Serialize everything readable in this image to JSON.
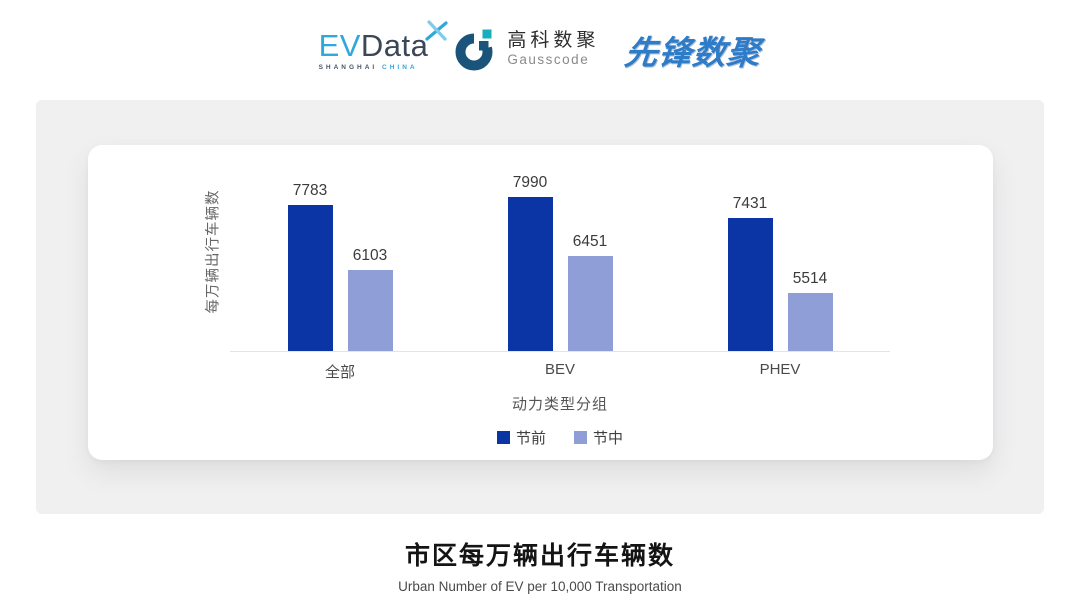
{
  "header": {
    "evdata": {
      "ev": "EV",
      "data": "Data",
      "sub_left": "SHANGHAI",
      "sub_right": "CHINA"
    },
    "gausscode": {
      "cn": "高科数聚",
      "en": "Gausscode"
    },
    "xianfeng": "先锋数聚"
  },
  "chart_data": {
    "type": "bar",
    "categories": [
      "全部",
      "BEV",
      "PHEV"
    ],
    "series": [
      {
        "name": "节前",
        "color": "#0B34A4",
        "values": [
          7783,
          7990,
          7431
        ]
      },
      {
        "name": "节中",
        "color": "#8F9ED6",
        "values": [
          6103,
          6451,
          5514
        ]
      }
    ],
    "xlabel": "动力类型分组",
    "ylabel": "每万辆出行车辆数",
    "ylim": [
      4000,
      8400
    ],
    "grid": false,
    "legend_position": "bottom",
    "value_labels": true
  },
  "footer": {
    "title": "市区每万辆出行车辆数",
    "subtitle": "Urban Number of EV per 10,000 Transportation"
  }
}
